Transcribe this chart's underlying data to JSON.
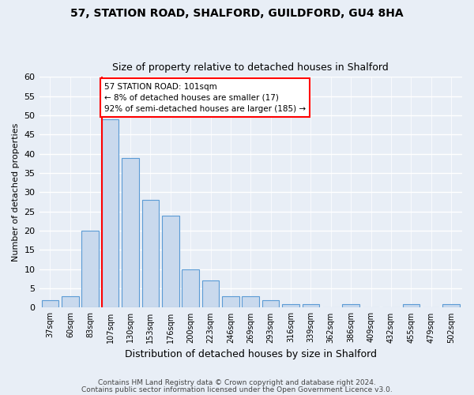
{
  "title1": "57, STATION ROAD, SHALFORD, GUILDFORD, GU4 8HA",
  "title2": "Size of property relative to detached houses in Shalford",
  "xlabel": "Distribution of detached houses by size in Shalford",
  "ylabel": "Number of detached properties",
  "bin_labels": [
    "37sqm",
    "60sqm",
    "83sqm",
    "107sqm",
    "130sqm",
    "153sqm",
    "176sqm",
    "200sqm",
    "223sqm",
    "246sqm",
    "269sqm",
    "293sqm",
    "316sqm",
    "339sqm",
    "362sqm",
    "386sqm",
    "409sqm",
    "432sqm",
    "455sqm",
    "479sqm",
    "502sqm"
  ],
  "bar_values": [
    2,
    3,
    20,
    49,
    39,
    28,
    24,
    10,
    7,
    3,
    3,
    2,
    1,
    1,
    0,
    1,
    0,
    0,
    1,
    0,
    1
  ],
  "bar_color": "#c9d9ed",
  "bar_edge_color": "#5b9bd5",
  "annotation_text": "57 STATION ROAD: 101sqm\n← 8% of detached houses are smaller (17)\n92% of semi-detached houses are larger (185) →",
  "annotation_box_color": "white",
  "annotation_box_edge": "red",
  "ylim": [
    0,
    60
  ],
  "yticks": [
    0,
    5,
    10,
    15,
    20,
    25,
    30,
    35,
    40,
    45,
    50,
    55,
    60
  ],
  "footer1": "Contains HM Land Registry data © Crown copyright and database right 2024.",
  "footer2": "Contains public sector information licensed under the Open Government Licence v3.0.",
  "bg_color": "#e8eef6",
  "grid_color": "white",
  "subject_line_color": "red",
  "red_line_bar_index": 3
}
